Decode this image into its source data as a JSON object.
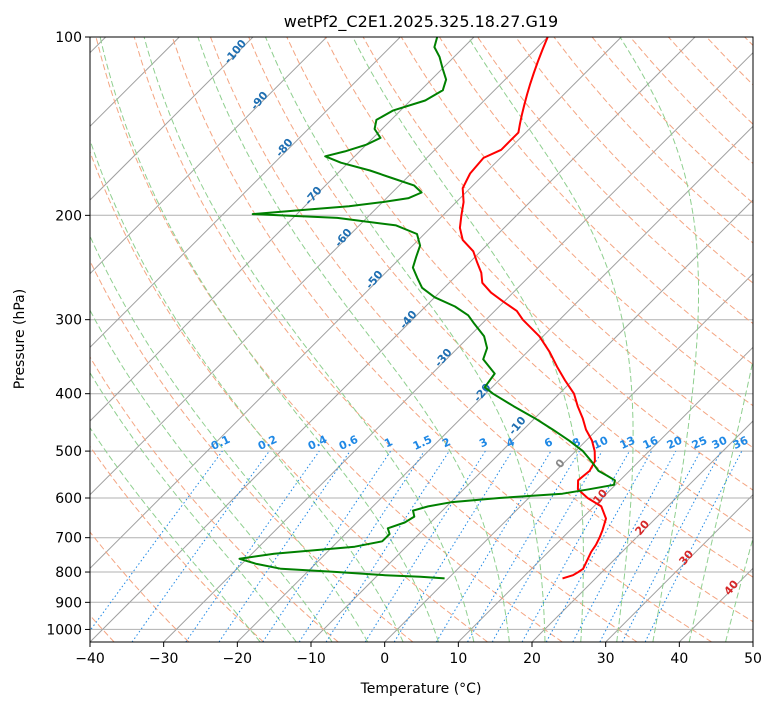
{
  "chart_data": {
    "type": "line",
    "title": "wetPf2_C2E1.2025.325.18.27.G19",
    "xlabel": "Temperature (°C)",
    "ylabel": "Pressure (hPa)",
    "xlim": [
      -40,
      50
    ],
    "ylim": [
      1050,
      100
    ],
    "y_scale": "log",
    "skew": true,
    "grid": true,
    "x_ticks": [
      "−40",
      "−30",
      "−20",
      "−10",
      "0",
      "10",
      "20",
      "30",
      "40",
      "50"
    ],
    "y_ticks": [
      "100",
      "200",
      "300",
      "400",
      "500",
      "600",
      "700",
      "800",
      "900",
      "1000"
    ],
    "colors": {
      "temperature": "#ff0000",
      "dewpoint": "#008000",
      "isotherm": "#a0a0a0",
      "dry_adiabat": "#f4a582",
      "moist_adiabat": "#8fcf8f",
      "mixing_ratio": "#1e88e5"
    },
    "series": [
      {
        "key": "temperature",
        "pressure": [
          820,
          810,
          800,
          790,
          760,
          740,
          720,
          700,
          680,
          650,
          620,
          600,
          580,
          560,
          540,
          520,
          500,
          480,
          460,
          440,
          420,
          400,
          380,
          360,
          340,
          320,
          300,
          290,
          280,
          270,
          260,
          250,
          240,
          230,
          220,
          210,
          200,
          190,
          180,
          170,
          160,
          155,
          150,
          145,
          140,
          135,
          130,
          125,
          120,
          115,
          110,
          105,
          100
        ],
        "values": [
          15.5,
          16.5,
          16.8,
          17.0,
          16.3,
          15.8,
          15.5,
          15.0,
          14.4,
          13.3,
          11.0,
          8.0,
          5.5,
          4.3,
          4.6,
          4.0,
          2.6,
          0.8,
          -1.5,
          -3.5,
          -5.8,
          -8.0,
          -11.0,
          -14.0,
          -17.0,
          -20.5,
          -25.0,
          -27.0,
          -30.0,
          -33.0,
          -35.5,
          -37.0,
          -39.0,
          -41.0,
          -44.0,
          -46.0,
          -47.5,
          -49.0,
          -51.0,
          -52.0,
          -52.3,
          -51.0,
          -51.0,
          -51.0,
          -52.0,
          -53.0,
          -54.0,
          -55.0,
          -56.0,
          -57.0,
          -58.0,
          -59.0,
          -60.0
        ]
      },
      {
        "key": "dewpoint",
        "pressure": [
          820,
          815,
          810,
          800,
          790,
          775,
          760,
          745,
          735,
          725,
          710,
          700,
          690,
          675,
          660,
          645,
          630,
          620,
          610,
          600,
          590,
          580,
          570,
          560,
          550,
          540,
          520,
          500,
          480,
          460,
          440,
          420,
          400,
          390,
          370,
          350,
          335,
          320,
          305,
          295,
          285,
          275,
          265,
          255,
          245,
          235,
          225,
          215,
          208,
          202,
          199,
          196,
          193,
          190,
          187,
          183,
          178,
          173,
          168,
          163,
          159,
          156,
          152,
          148,
          143,
          138,
          133,
          128,
          123,
          118,
          113,
          108,
          104,
          100
        ],
        "values": [
          -0.5,
          -4,
          -9,
          -16,
          -24,
          -28,
          -31,
          -27,
          -22,
          -17,
          -14,
          -14,
          -14,
          -15,
          -13.5,
          -13,
          -14,
          -12.5,
          -10,
          -4,
          4,
          7,
          9.8,
          9.3,
          7.6,
          5.8,
          3.5,
          1.0,
          -2.3,
          -6.0,
          -10.0,
          -14.5,
          -19.0,
          -21.0,
          -21.5,
          -25.0,
          -26.0,
          -28.0,
          -31.0,
          -33.0,
          -36.0,
          -40.0,
          -43.0,
          -45.0,
          -47.0,
          -48.0,
          -49.0,
          -51.0,
          -55.0,
          -64.0,
          -76.0,
          -70.0,
          -64.0,
          -60.0,
          -57.0,
          -56.0,
          -58.0,
          -62.0,
          -66.0,
          -71.0,
          -74.0,
          -72.0,
          -70.0,
          -69.0,
          -71.0,
          -72.0,
          -71.0,
          -68.0,
          -67.0,
          -68.0,
          -70.0,
          -72.0,
          -74.0,
          -75.0
        ]
      }
    ],
    "dry_adiabat_labels": [
      "-100",
      "-90",
      "-80",
      "-70",
      "-60",
      "-50",
      "-40",
      "-30",
      "-20",
      "-10"
    ],
    "moist_adiabat_labels": [
      "0",
      "10",
      "20",
      "30",
      "40"
    ],
    "mixing_ratio_labels": [
      "0.1",
      "0.2",
      "0.4",
      "0.6",
      "1",
      "1.5",
      "2",
      "3",
      "4",
      "6",
      "8",
      "10",
      "13",
      "16",
      "20",
      "25",
      "30",
      "36"
    ]
  }
}
